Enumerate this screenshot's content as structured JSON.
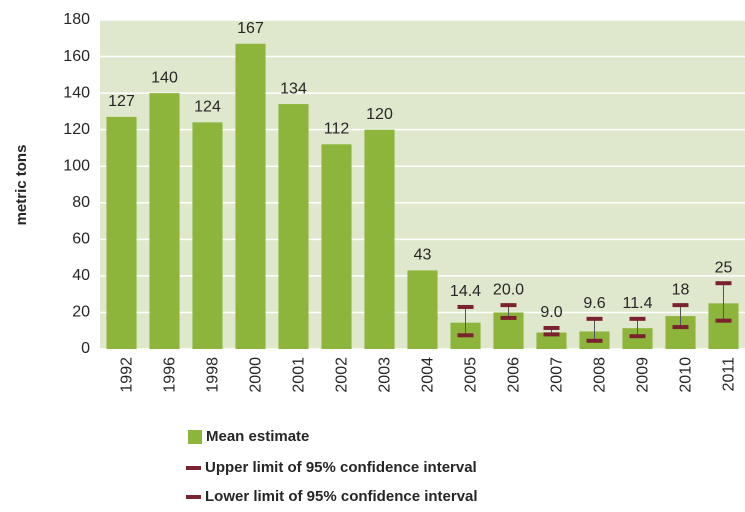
{
  "chart_data": {
    "type": "bar",
    "y_label": "metric tons",
    "categories": [
      "1992",
      "1996",
      "1998",
      "2000",
      "2001",
      "2002",
      "2003",
      "2004",
      "2005",
      "2006",
      "2007",
      "2008",
      "2009",
      "2010",
      "2011"
    ],
    "series": [
      {
        "name": "Mean estimate",
        "color": "#8db53c",
        "values": [
          127,
          140,
          124,
          167,
          134,
          112,
          120,
          43,
          14.4,
          20.0,
          9.0,
          9.6,
          11.4,
          18,
          25
        ],
        "value_labels": [
          "127",
          "140",
          "124",
          "167",
          "134",
          "112",
          "120",
          "43",
          "14.4",
          "20.0",
          "9.0",
          "9.6",
          "11.4",
          "18",
          "25"
        ]
      },
      {
        "name": "Upper limit of 95% confidence interval",
        "color": "#7b2230",
        "values": [
          null,
          null,
          null,
          null,
          null,
          null,
          null,
          null,
          23,
          24,
          11.5,
          16.5,
          16.5,
          24,
          36
        ]
      },
      {
        "name": "Lower limit of 95% confidence interval",
        "color": "#7b2230",
        "values": [
          null,
          null,
          null,
          null,
          null,
          null,
          null,
          null,
          7.5,
          17,
          8,
          4.5,
          7,
          12,
          15.5
        ]
      }
    ],
    "plot_background": "#dfe8cd",
    "ylim": [
      0,
      180
    ],
    "yticks": [
      0,
      20,
      40,
      60,
      80,
      100,
      120,
      140,
      160,
      180
    ],
    "grid": true
  }
}
